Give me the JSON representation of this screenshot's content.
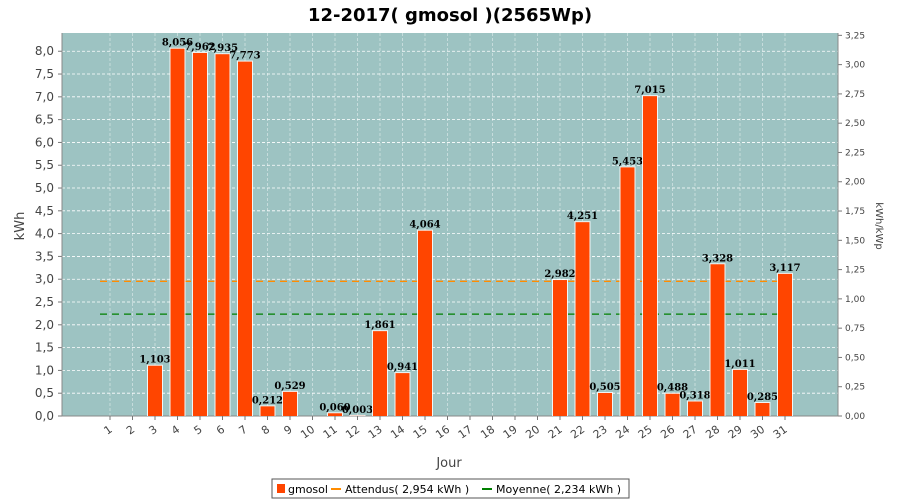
{
  "chart_data": {
    "type": "bar",
    "title": "12-2017( gmosol )(2565Wp)",
    "xlabel": "Jour",
    "ylabel": "kWh",
    "ylabel_right": "kWh/kWp",
    "ylim": [
      0,
      8.4
    ],
    "ylim_right": [
      0,
      3.27
    ],
    "yticks": [
      "0,0",
      "0,5",
      "1,0",
      "1,5",
      "2,0",
      "2,5",
      "3,0",
      "3,5",
      "4,0",
      "4,5",
      "5,0",
      "5,5",
      "6,0",
      "6,5",
      "7,0",
      "7,5",
      "8,0"
    ],
    "yticks_right": [
      "0,00",
      "0,25",
      "0,50",
      "0,75",
      "1,00",
      "1,25",
      "1,50",
      "1,75",
      "2,00",
      "2,25",
      "2,50",
      "2,75",
      "3,00",
      "3,25"
    ],
    "categories": [
      "1",
      "2",
      "3",
      "4",
      "5",
      "6",
      "7",
      "8",
      "9",
      "10",
      "11",
      "12",
      "13",
      "14",
      "15",
      "16",
      "17",
      "18",
      "19",
      "20",
      "21",
      "22",
      "23",
      "24",
      "25",
      "26",
      "27",
      "28",
      "29",
      "30",
      "31"
    ],
    "series": [
      {
        "name": "gmosol",
        "color": "#ff4500",
        "values": [
          0,
          0,
          1.103,
          8.056,
          7.962,
          7.935,
          7.773,
          0.212,
          0.529,
          0,
          0.06,
          0.003,
          1.861,
          0.941,
          4.064,
          0,
          0,
          0,
          0,
          0,
          2.982,
          4.251,
          0.505,
          5.453,
          7.015,
          0.488,
          0.318,
          3.328,
          1.011,
          0.285,
          3.117
        ],
        "labels": [
          "",
          "",
          "1,103",
          "8,056",
          "7,962",
          "7,935",
          "7,773",
          "0,212",
          "0,529",
          "",
          "0,060",
          "0,003",
          "1,861",
          "0,941",
          "4,064",
          "",
          "",
          "",
          "",
          "",
          "2,982",
          "4,251",
          "0,505",
          "5,453",
          "7,015",
          "0,488",
          "0,318",
          "3,328",
          "1,011",
          "0,285",
          "3,117"
        ]
      }
    ],
    "reference_lines": [
      {
        "name": "Attendus",
        "value": 2.954,
        "color": "#ff8c00",
        "legend": "Attendus( 2,954 kWh )"
      },
      {
        "name": "Moyenne",
        "value": 2.234,
        "color": "#008000",
        "legend": "Moyenne( 2,234 kWh )"
      }
    ],
    "legend": [
      "gmosol",
      "Attendus( 2,954 kWh )",
      "Moyenne( 2,234 kWh )"
    ],
    "legend_position": "bottom",
    "grid": true,
    "plot_background": "#9dc3c2"
  }
}
